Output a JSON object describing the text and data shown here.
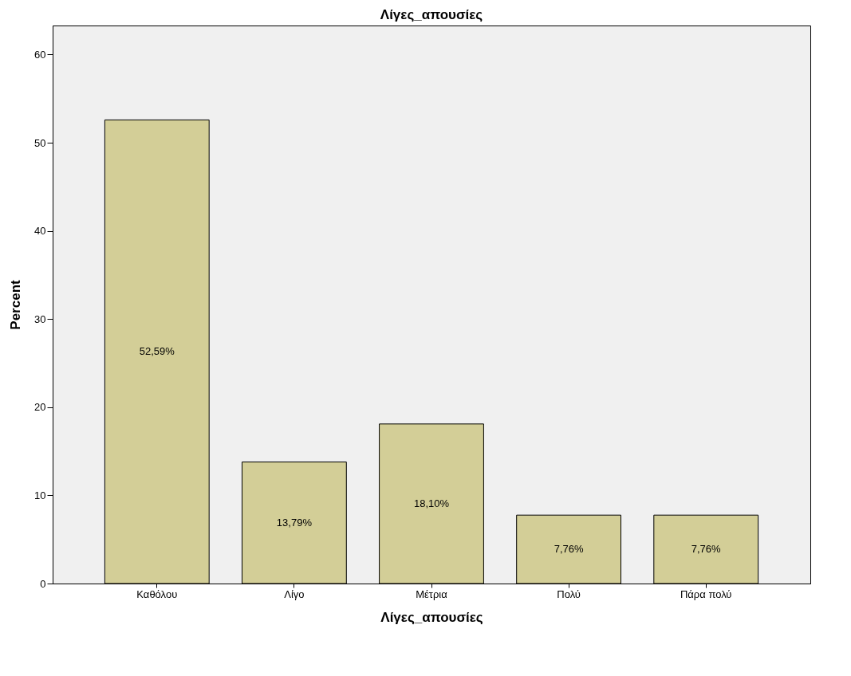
{
  "chart_data": {
    "type": "bar",
    "title": "Λίγες_απουσίες",
    "xlabel": "Λίγες_απουσίες",
    "ylabel": "Percent",
    "categories": [
      "Καθόλου",
      "Λίγο",
      "Μέτρια",
      "Πολύ",
      "Πάρα πολύ"
    ],
    "values": [
      52.59,
      13.79,
      18.1,
      7.76,
      7.76
    ],
    "value_labels": [
      "52,59%",
      "13,79%",
      "18,10%",
      "7,76%",
      "7,76%"
    ],
    "color": "#d3ce97",
    "ylim": [
      0,
      63.3
    ],
    "yticks": [
      0,
      10,
      20,
      30,
      40,
      50,
      60
    ],
    "grid": false
  }
}
